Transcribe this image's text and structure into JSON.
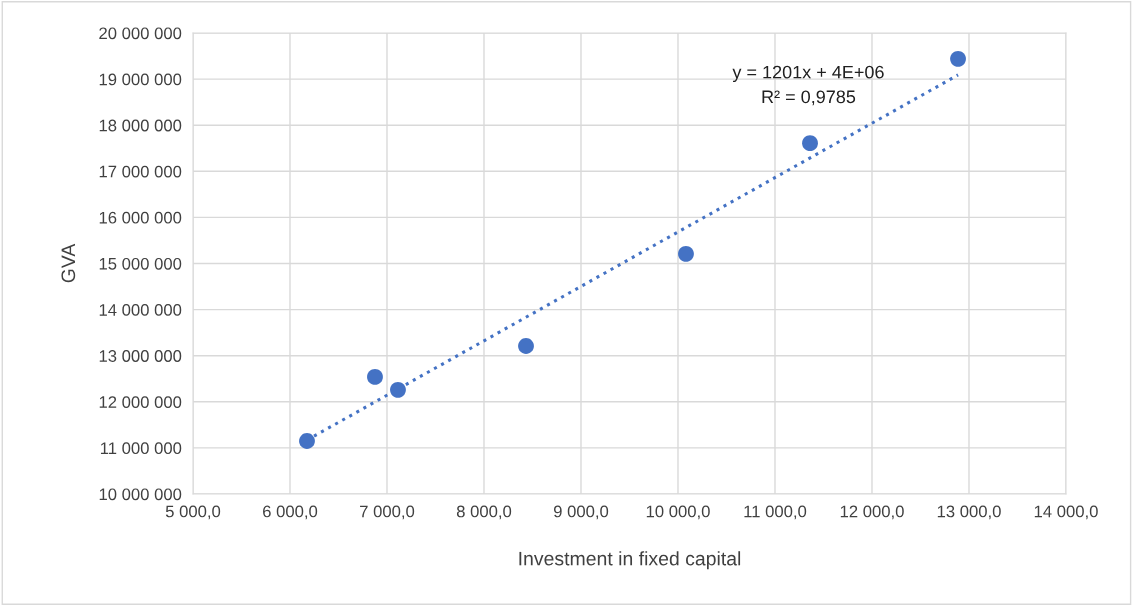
{
  "chart_data": {
    "type": "scatter",
    "xlabel": "Investment in fixed capital",
    "ylabel": "GVA",
    "x": [
      6175,
      6876,
      7113,
      8433,
      10082,
      11361,
      12887
    ],
    "series": [
      {
        "color": "#4472c4",
        "values": [
          11150000,
          12540000,
          12260000,
          13210000,
          15210000,
          17610000,
          19440000
        ],
        "marker": "circle"
      },
      {
        "type": "line",
        "color": "#4472c4",
        "x": [
          6175,
          12887
        ],
        "values": [
          11170000,
          19090000
        ],
        "line_style": "dotted",
        "marker": "none"
      }
    ],
    "annotations": [
      "y = 1201x + 4E+06\nR² = 0,9785"
    ],
    "xlim": [
      5000,
      14000
    ],
    "xticks": [
      {
        "value": 5000,
        "label": "5 000,0"
      },
      {
        "value": 6000,
        "label": "6 000,0"
      },
      {
        "value": 7000,
        "label": "7 000,0"
      },
      {
        "value": 8000,
        "label": "8 000,0"
      },
      {
        "value": 9000,
        "label": "9 000,0"
      },
      {
        "value": 10000,
        "label": "10 000,0"
      },
      {
        "value": 11000,
        "label": "11 000,0"
      },
      {
        "value": 12000,
        "label": "12 000,0"
      },
      {
        "value": 13000,
        "label": "13 000,0"
      },
      {
        "value": 14000,
        "label": "14 000,0"
      }
    ],
    "ylim": [
      10000000,
      20000000
    ],
    "yticks": [
      {
        "value": 10000000,
        "label": "10 000 000"
      },
      {
        "value": 11000000,
        "label": "11 000 000"
      },
      {
        "value": 12000000,
        "label": "12 000 000"
      },
      {
        "value": 13000000,
        "label": "13 000 000"
      },
      {
        "value": 14000000,
        "label": "14 000 000"
      },
      {
        "value": 15000000,
        "label": "15 000 000"
      },
      {
        "value": 16000000,
        "label": "16 000 000"
      },
      {
        "value": 17000000,
        "label": "17 000 000"
      },
      {
        "value": 18000000,
        "label": "18 000 000"
      },
      {
        "value": 19000000,
        "label": "19 000 000"
      },
      {
        "value": 20000000,
        "label": "20 000 000"
      }
    ],
    "grid": true,
    "legend": false
  }
}
